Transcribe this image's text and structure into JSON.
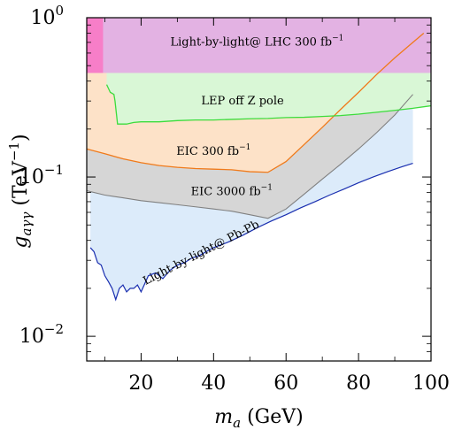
{
  "chart_data": {
    "type": "area",
    "title": "",
    "xlabel": {
      "base": "m",
      "sub": "a",
      "unit": " (GeV)"
    },
    "ylabel": {
      "base": "g",
      "sub": "aγγ",
      "unit": " (TeV",
      "unit_sup": "−1",
      "unit_close": ")"
    },
    "xlim": [
      5,
      100
    ],
    "ylim": [
      0.007,
      1.0
    ],
    "y_scale": "log",
    "grid": false,
    "x_ticks": [
      {
        "value": 20,
        "label": "20"
      },
      {
        "value": 40,
        "label": "40"
      },
      {
        "value": 60,
        "label": "60"
      },
      {
        "value": 80,
        "label": "80"
      },
      {
        "value": 100,
        "label": "100"
      }
    ],
    "y_ticks": [
      {
        "value": 0.01,
        "base": "10",
        "exp": "−2"
      },
      {
        "value": 0.1,
        "base": "10",
        "exp": "−1"
      },
      {
        "value": 1.0,
        "base": "10",
        "exp": "0"
      }
    ],
    "colors": {
      "lhc_fill": "#e3b2e3",
      "lhc_left_fill": "#f77ec8",
      "lep_fill": "#d9f7d6",
      "lep_line": "#3cdc3c",
      "eic300_fill": "#fde2c8",
      "eic300_line": "#f07a1a",
      "eic3000_fill": "#d6d6d6",
      "eic3000_line": "#808080",
      "pbpb_fill": "#dcebfa",
      "pbpb_line": "#1a2fb0"
    },
    "series": [
      {
        "name": "Light-by-light@ LHC 300 fb",
        "name_sup": "−1",
        "kind": "band",
        "x": [
          5,
          100
        ],
        "y_low": [
          0.45,
          0.45
        ],
        "y_high": [
          1.0,
          1.0
        ],
        "left_strip_xmax": 9.5
      },
      {
        "name": "LEP off Z pole",
        "kind": "line",
        "x": [
          10.5,
          11.5,
          12.5,
          12.8,
          13.5,
          14.5,
          16,
          18,
          20,
          25,
          30,
          35,
          40,
          45,
          50,
          55,
          60,
          65,
          70,
          75,
          80,
          85,
          90,
          95,
          100
        ],
        "y": [
          0.38,
          0.34,
          0.33,
          0.3,
          0.215,
          0.215,
          0.215,
          0.22,
          0.222,
          0.222,
          0.226,
          0.228,
          0.228,
          0.23,
          0.232,
          0.233,
          0.236,
          0.237,
          0.24,
          0.243,
          0.248,
          0.255,
          0.262,
          0.27,
          0.28
        ]
      },
      {
        "name": "EIC 300 fb",
        "name_sup": "−1",
        "kind": "line",
        "x": [
          5,
          10,
          15,
          20,
          25,
          30,
          35,
          40,
          45,
          50,
          55,
          60,
          65,
          70,
          75,
          80,
          85,
          90,
          95,
          98
        ],
        "y": [
          0.15,
          0.14,
          0.13,
          0.123,
          0.118,
          0.115,
          0.113,
          0.112,
          0.111,
          0.108,
          0.107,
          0.125,
          0.16,
          0.205,
          0.265,
          0.34,
          0.44,
          0.56,
          0.7,
          0.8
        ]
      },
      {
        "name": "EIC 3000 fb",
        "name_sup": "−1",
        "kind": "line",
        "x": [
          5,
          10,
          15,
          20,
          25,
          30,
          35,
          40,
          45,
          50,
          55,
          60,
          65,
          70,
          75,
          80,
          85,
          90,
          95
        ],
        "y": [
          0.082,
          0.077,
          0.074,
          0.071,
          0.069,
          0.067,
          0.065,
          0.063,
          0.061,
          0.058,
          0.055,
          0.063,
          0.078,
          0.097,
          0.12,
          0.15,
          0.19,
          0.245,
          0.33
        ]
      },
      {
        "name": "Light-by-light@ Pb-Pb",
        "kind": "line",
        "x": [
          6,
          7,
          8,
          9,
          10,
          11,
          12,
          13,
          14,
          15,
          16,
          17,
          18,
          19,
          20,
          22,
          24,
          26,
          28,
          30,
          32,
          34,
          36,
          38,
          40,
          44,
          48,
          52,
          56,
          60,
          64,
          68,
          72,
          76,
          80,
          84,
          88,
          92,
          95
        ],
        "y": [
          0.036,
          0.034,
          0.029,
          0.028,
          0.024,
          0.022,
          0.02,
          0.017,
          0.02,
          0.021,
          0.019,
          0.02,
          0.02,
          0.021,
          0.019,
          0.024,
          0.025,
          0.023,
          0.026,
          0.028,
          0.029,
          0.031,
          0.032,
          0.034,
          0.036,
          0.039,
          0.043,
          0.048,
          0.053,
          0.058,
          0.064,
          0.07,
          0.077,
          0.084,
          0.092,
          0.1,
          0.108,
          0.116,
          0.122
        ]
      }
    ],
    "annotations": [
      {
        "name": "label-lhc",
        "text": "Light-by-light@ LHC 300 fb",
        "sup": "−1",
        "x": 52,
        "y": 0.67,
        "rotate": 0
      },
      {
        "name": "label-lep",
        "text": "LEP off Z pole",
        "x": 48,
        "y": 0.285,
        "rotate": 0
      },
      {
        "name": "label-eic300",
        "text": "EIC 300 fb",
        "sup": "−1",
        "x": 40,
        "y": 0.138,
        "rotate": 0
      },
      {
        "name": "label-eic3000",
        "text": "EIC 3000 fb",
        "sup": "−1",
        "x": 45,
        "y": 0.077,
        "rotate": 0
      },
      {
        "name": "label-pbpb",
        "text": "Light-by-light@ Pb-Pb",
        "x": 37,
        "y": 0.032,
        "rotate": -27
      }
    ]
  }
}
